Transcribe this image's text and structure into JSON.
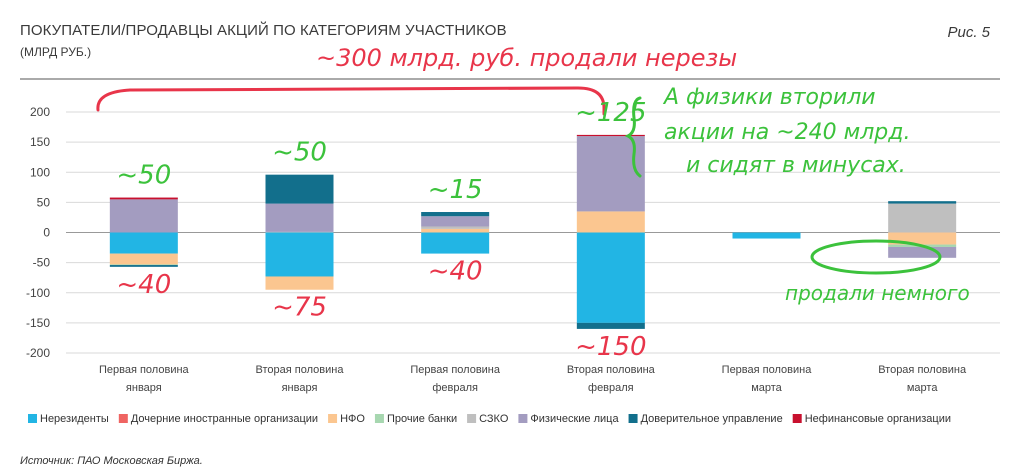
{
  "header": {
    "title": "ПОКУПАТЕЛИ/ПРОДАВЦЫ АКЦИЙ ПО КАТЕГОРИЯМ УЧАСТНИКОВ",
    "subtitle": "(МЛРД РУБ.)",
    "figure_label": "Рис. 5"
  },
  "source_note": "Источник: ПАО Московская Биржа.",
  "colors": {
    "Нерезиденты": "#22b5e4",
    "Дочерние иностранные организации": "#ef6462",
    "НФО": "#fbc690",
    "Прочие банки": "#a7d7b0",
    "СЗКО": "#bfbfbf",
    "Физические лица": "#a39cc0",
    "Доверительное управление": "#126f8c",
    "Нефинансовые организации": "#c8102e",
    "annotation_red": "#e8354a",
    "annotation_green": "#3cc23c"
  },
  "chart_data": {
    "type": "bar",
    "stacked": true,
    "title": "ПОКУПАТЕЛИ/ПРОДАВЦЫ АКЦИЙ ПО КАТЕГОРИЯМ УЧАСТНИКОВ",
    "subtitle": "(МЛРД РУБ.)",
    "xlabel": "",
    "ylabel": "",
    "ylim": [
      -200,
      200
    ],
    "yticks": [
      200,
      150,
      100,
      50,
      0,
      -50,
      -100,
      -150,
      -200
    ],
    "grid": true,
    "legend_position": "bottom",
    "categories": [
      [
        "Первая половина",
        "января"
      ],
      [
        "Вторая половина",
        "января"
      ],
      [
        "Первая половина",
        "февраля"
      ],
      [
        "Вторая половина",
        "февраля"
      ],
      [
        "Первая половина",
        "марта"
      ],
      [
        "Вторая половина",
        "марта"
      ]
    ],
    "series": [
      {
        "name": "Нерезиденты",
        "values": [
          -35,
          -73,
          -35,
          -150,
          -10,
          0
        ]
      },
      {
        "name": "Дочерние иностранные организации",
        "values": [
          0,
          0,
          0,
          0,
          0,
          0
        ]
      },
      {
        "name": "НФО",
        "values": [
          -18,
          -22,
          6,
          35,
          0,
          -20
        ]
      },
      {
        "name": "Прочие банки",
        "values": [
          -1,
          0,
          0,
          0,
          0,
          -4
        ]
      },
      {
        "name": "СЗКО",
        "values": [
          0,
          1,
          4,
          0,
          0,
          48
        ]
      },
      {
        "name": "Физические лица",
        "values": [
          55,
          47,
          17,
          125,
          0,
          -18
        ]
      },
      {
        "name": "Доверительное управление",
        "values": [
          -3,
          48,
          7,
          -10,
          0,
          4
        ]
      },
      {
        "name": "Нефинансовые организации",
        "values": [
          3,
          0,
          0,
          2,
          0,
          0
        ]
      }
    ]
  },
  "annotations": {
    "top_note": "~300 млрд. руб. продали нерезы",
    "right_note": [
      "А физики вторили",
      "акции на ~240 млрд.",
      "и сидят в минусах."
    ],
    "bar_labels": [
      {
        "text": "~50",
        "color": "green",
        "bar": 0,
        "pos": "above"
      },
      {
        "text": "~40",
        "color": "red",
        "bar": 0,
        "pos": "below"
      },
      {
        "text": "~50",
        "color": "green",
        "bar": 1,
        "pos": "above"
      },
      {
        "text": "~75",
        "color": "red",
        "bar": 1,
        "pos": "below"
      },
      {
        "text": "~15",
        "color": "green",
        "bar": 2,
        "pos": "above"
      },
      {
        "text": "~40",
        "color": "red",
        "bar": 2,
        "pos": "below"
      },
      {
        "text": "~125",
        "color": "green",
        "bar": 3,
        "pos": "above"
      },
      {
        "text": "~150",
        "color": "red",
        "bar": 3,
        "pos": "below"
      }
    ],
    "bottom_right_note": "продали немного"
  }
}
